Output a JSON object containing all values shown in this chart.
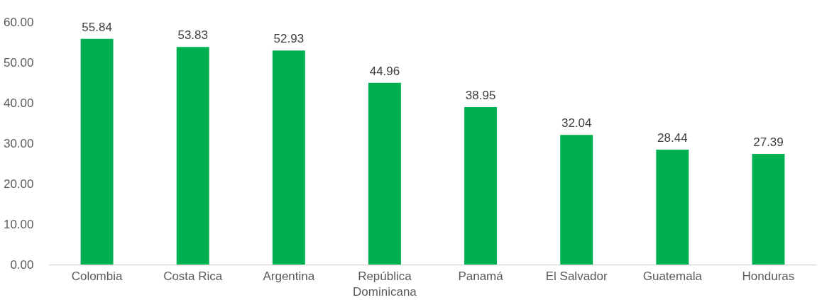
{
  "chart_data": {
    "type": "bar",
    "categories": [
      "Colombia",
      "Costa Rica",
      "Argentina",
      "República Dominicana",
      "Panamá",
      "El Salvador",
      "Guatemala",
      "Honduras"
    ],
    "values": [
      55.84,
      53.83,
      52.93,
      44.96,
      38.95,
      32.04,
      28.44,
      27.39
    ],
    "color": "#00b050",
    "ylim": [
      0,
      60
    ],
    "yticks": [
      {
        "value": 0,
        "label": "0.00"
      },
      {
        "value": 10,
        "label": "10.00"
      },
      {
        "value": 20,
        "label": "20.00"
      },
      {
        "value": 30,
        "label": "30.00"
      },
      {
        "value": 40,
        "label": "40.00"
      },
      {
        "value": 50,
        "label": "50.00"
      },
      {
        "value": 60,
        "label": "60.00"
      }
    ],
    "data_labels": true,
    "grid": false
  }
}
